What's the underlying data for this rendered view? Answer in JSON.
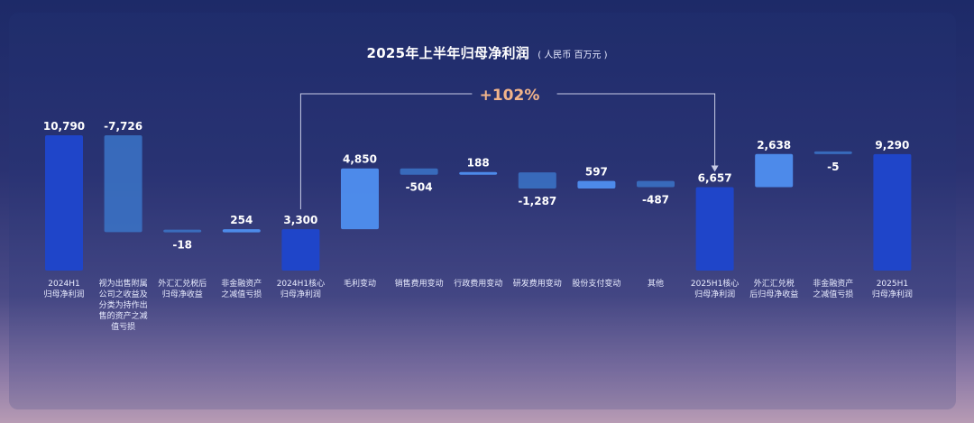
{
  "chart_data": {
    "type": "bar",
    "title": "2025年上半年归母净利润",
    "subtitle": "( 人民币  百万元 )",
    "annotation": "+102%",
    "categories": [
      "2024H1\n归母净利润",
      "视为出售附属\n公司之收益及\n分类为持作出\n售的资产之减\n值亏损",
      "外汇汇兑税后\n归母净收益",
      "非金融资产\n之减值亏损",
      "2024H1核心\n归母净利润",
      "毛利变动",
      "销售费用变动",
      "行政费用变动",
      "研发费用变动",
      "股份支付变动",
      "其他",
      "2025H1核心\n归母净利润",
      "外汇汇兑税\n后归母净收益",
      "非金融资产\n之减值亏损",
      "2025H1\n归母净利润"
    ],
    "values": [
      10790,
      -7726,
      -18,
      254,
      3300,
      4850,
      -504,
      188,
      -1287,
      597,
      -487,
      6657,
      2638,
      -5,
      9290
    ],
    "value_labels": [
      "10,790",
      "-7,726",
      "-18",
      "254",
      "3,300",
      "4,850",
      "-504",
      "188",
      "-1,287",
      "597",
      "-487",
      "6,657",
      "2,638",
      "-5",
      "9,290"
    ],
    "bar_kinds": [
      "total",
      "delta",
      "delta",
      "delta",
      "total",
      "delta",
      "delta",
      "delta",
      "delta",
      "delta",
      "delta",
      "total",
      "delta",
      "delta",
      "total"
    ],
    "colors": {
      "total": "#1f45c9",
      "increase": "#4f8ff0",
      "decrease": "#3b74c8",
      "connector": "#c9cde6",
      "annotation": "#f2b48a"
    }
  }
}
